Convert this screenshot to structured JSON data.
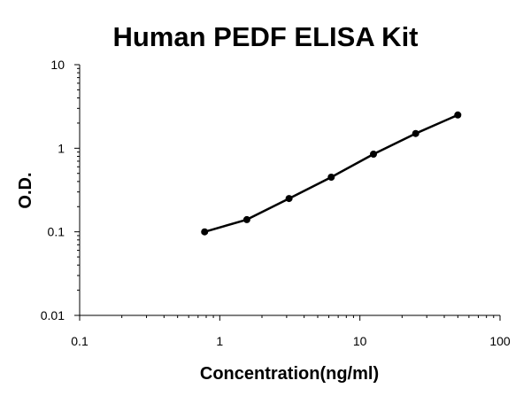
{
  "chart_data": {
    "type": "line",
    "title": "Human PEDF ELISA Kit",
    "xlabel": "Concentration(ng/ml)",
    "ylabel": "O.D.",
    "x_scale": "log",
    "y_scale": "log",
    "xlim": [
      0.1,
      100
    ],
    "ylim": [
      0.01,
      10
    ],
    "x_ticks": [
      "0.1",
      "1",
      "10",
      "100"
    ],
    "y_ticks": [
      "0.01",
      "0.1",
      "1",
      "10"
    ],
    "grid": false,
    "legend": "none",
    "series": [
      {
        "x": [
          0.78,
          1.56,
          3.12,
          6.25,
          12.5,
          25,
          50
        ],
        "y": [
          0.1,
          0.14,
          0.25,
          0.45,
          0.85,
          1.5,
          2.5
        ],
        "markers": true
      }
    ],
    "colors": {
      "line": "#000000",
      "marker": "#000000",
      "axis": "#000000"
    }
  }
}
